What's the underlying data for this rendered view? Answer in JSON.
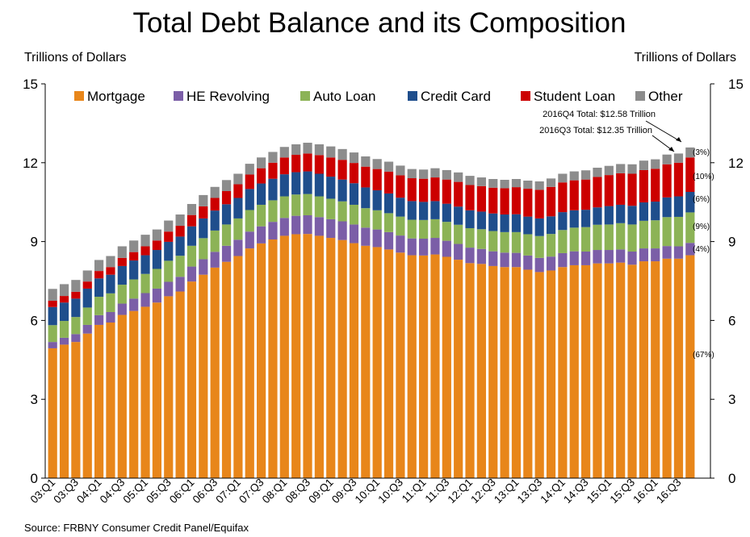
{
  "chart_data": {
    "type": "bar",
    "stacked": true,
    "title": "Total Debt Balance and its Composition",
    "ylabel_left": "Trillions of Dollars",
    "ylabel_right": "Trillions of Dollars",
    "ylim": [
      0,
      15
    ],
    "yticks": [
      "0",
      "3",
      "6",
      "9",
      "12",
      "15"
    ],
    "xtick_labels": [
      "03:Q1",
      "03:Q3",
      "04:Q1",
      "04:Q3",
      "05:Q1",
      "05:Q3",
      "06:Q1",
      "06:Q3",
      "07:Q1",
      "07:Q3",
      "08:Q1",
      "08:Q3",
      "09:Q1",
      "09:Q3",
      "10:Q1",
      "10:Q3",
      "11:Q1",
      "11:Q3",
      "12:Q1",
      "12:Q3",
      "13:Q1",
      "13:Q3",
      "14:Q1",
      "14:Q3",
      "15:Q1",
      "15:Q3",
      "16:Q1",
      "16:Q3"
    ],
    "categories": [
      "03:Q1",
      "03:Q2",
      "03:Q3",
      "03:Q4",
      "04:Q1",
      "04:Q2",
      "04:Q3",
      "04:Q4",
      "05:Q1",
      "05:Q2",
      "05:Q3",
      "05:Q4",
      "06:Q1",
      "06:Q2",
      "06:Q3",
      "06:Q4",
      "07:Q1",
      "07:Q2",
      "07:Q3",
      "07:Q4",
      "08:Q1",
      "08:Q2",
      "08:Q3",
      "08:Q4",
      "09:Q1",
      "09:Q2",
      "09:Q3",
      "09:Q4",
      "10:Q1",
      "10:Q2",
      "10:Q3",
      "10:Q4",
      "11:Q1",
      "11:Q2",
      "11:Q3",
      "11:Q4",
      "12:Q1",
      "12:Q2",
      "12:Q3",
      "12:Q4",
      "13:Q1",
      "13:Q2",
      "13:Q3",
      "13:Q4",
      "14:Q1",
      "14:Q2",
      "14:Q3",
      "14:Q4",
      "15:Q1",
      "15:Q2",
      "15:Q3",
      "15:Q4",
      "16:Q1",
      "16:Q2",
      "16:Q3",
      "16:Q4"
    ],
    "series": [
      {
        "name": "Mortgage",
        "color": "#E8861A",
        "values": [
          4.94,
          5.08,
          5.18,
          5.5,
          5.83,
          5.92,
          6.21,
          6.36,
          6.52,
          6.68,
          6.92,
          7.1,
          7.48,
          7.74,
          8.01,
          8.23,
          8.45,
          8.74,
          8.93,
          9.08,
          9.22,
          9.28,
          9.29,
          9.22,
          9.14,
          9.06,
          8.94,
          8.84,
          8.79,
          8.7,
          8.58,
          8.48,
          8.47,
          8.51,
          8.42,
          8.31,
          8.18,
          8.15,
          8.07,
          8.03,
          8.03,
          7.93,
          7.84,
          7.9,
          8.03,
          8.1,
          8.1,
          8.17,
          8.17,
          8.2,
          8.12,
          8.25,
          8.25,
          8.35,
          8.35,
          8.48
        ]
      },
      {
        "name": "HE Revolving",
        "color": "#7B5EA7",
        "values": [
          0.24,
          0.26,
          0.3,
          0.33,
          0.37,
          0.4,
          0.43,
          0.47,
          0.52,
          0.53,
          0.55,
          0.56,
          0.57,
          0.59,
          0.6,
          0.61,
          0.62,
          0.64,
          0.65,
          0.67,
          0.68,
          0.7,
          0.71,
          0.71,
          0.71,
          0.71,
          0.71,
          0.69,
          0.67,
          0.66,
          0.65,
          0.64,
          0.64,
          0.63,
          0.61,
          0.6,
          0.59,
          0.57,
          0.56,
          0.55,
          0.54,
          0.54,
          0.54,
          0.53,
          0.53,
          0.53,
          0.52,
          0.51,
          0.51,
          0.5,
          0.5,
          0.49,
          0.49,
          0.48,
          0.47,
          0.47
        ]
      },
      {
        "name": "Auto Loan",
        "color": "#8CB356",
        "values": [
          0.64,
          0.64,
          0.65,
          0.66,
          0.7,
          0.71,
          0.72,
          0.73,
          0.73,
          0.75,
          0.8,
          0.8,
          0.79,
          0.8,
          0.81,
          0.81,
          0.81,
          0.82,
          0.82,
          0.82,
          0.82,
          0.81,
          0.81,
          0.79,
          0.78,
          0.76,
          0.75,
          0.74,
          0.73,
          0.72,
          0.72,
          0.71,
          0.71,
          0.71,
          0.72,
          0.73,
          0.74,
          0.75,
          0.77,
          0.78,
          0.79,
          0.81,
          0.83,
          0.86,
          0.88,
          0.9,
          0.93,
          0.96,
          0.97,
          1.0,
          1.03,
          1.05,
          1.07,
          1.1,
          1.12,
          1.16
        ]
      },
      {
        "name": "Credit Card",
        "color": "#1F4E8C",
        "values": [
          0.69,
          0.7,
          0.7,
          0.72,
          0.7,
          0.71,
          0.71,
          0.72,
          0.71,
          0.72,
          0.72,
          0.73,
          0.74,
          0.75,
          0.76,
          0.77,
          0.78,
          0.8,
          0.81,
          0.82,
          0.84,
          0.85,
          0.86,
          0.86,
          0.84,
          0.83,
          0.82,
          0.79,
          0.76,
          0.75,
          0.72,
          0.71,
          0.69,
          0.69,
          0.69,
          0.69,
          0.68,
          0.67,
          0.67,
          0.67,
          0.68,
          0.67,
          0.67,
          0.67,
          0.68,
          0.66,
          0.66,
          0.66,
          0.7,
          0.7,
          0.71,
          0.7,
          0.71,
          0.75,
          0.78,
          0.78
        ]
      },
      {
        "name": "Student Loan",
        "color": "#CC0000",
        "values": [
          0.24,
          0.25,
          0.26,
          0.27,
          0.28,
          0.29,
          0.31,
          0.32,
          0.34,
          0.36,
          0.39,
          0.41,
          0.43,
          0.46,
          0.48,
          0.5,
          0.52,
          0.55,
          0.58,
          0.61,
          0.64,
          0.66,
          0.68,
          0.71,
          0.73,
          0.75,
          0.77,
          0.79,
          0.81,
          0.83,
          0.85,
          0.87,
          0.88,
          0.9,
          0.92,
          0.94,
          0.96,
          0.97,
          0.98,
          1.0,
          1.03,
          1.06,
          1.09,
          1.12,
          1.13,
          1.14,
          1.15,
          1.16,
          1.18,
          1.2,
          1.22,
          1.23,
          1.25,
          1.26,
          1.28,
          1.31
        ]
      },
      {
        "name": "Other",
        "color": "#8C8C8C",
        "values": [
          0.45,
          0.45,
          0.45,
          0.42,
          0.42,
          0.42,
          0.44,
          0.44,
          0.44,
          0.42,
          0.42,
          0.43,
          0.42,
          0.43,
          0.42,
          0.42,
          0.4,
          0.41,
          0.41,
          0.41,
          0.4,
          0.4,
          0.41,
          0.41,
          0.42,
          0.41,
          0.4,
          0.39,
          0.38,
          0.38,
          0.37,
          0.35,
          0.35,
          0.35,
          0.36,
          0.36,
          0.35,
          0.33,
          0.33,
          0.32,
          0.31,
          0.31,
          0.32,
          0.32,
          0.33,
          0.34,
          0.35,
          0.35,
          0.35,
          0.35,
          0.36,
          0.36,
          0.36,
          0.37,
          0.35,
          0.38
        ]
      }
    ],
    "annotations": {
      "q4_total": "2016Q4 Total: $12.58 Trillion",
      "q3_total": "2016Q3 Total: $12.35 Trillion",
      "shares": [
        "(3%)",
        "(10%)",
        "(6%)",
        "(9%)",
        "(4%)",
        "(67%)"
      ]
    },
    "legend_position": "top"
  },
  "source": "Source: FRBNY Consumer Credit Panel/Equifax"
}
